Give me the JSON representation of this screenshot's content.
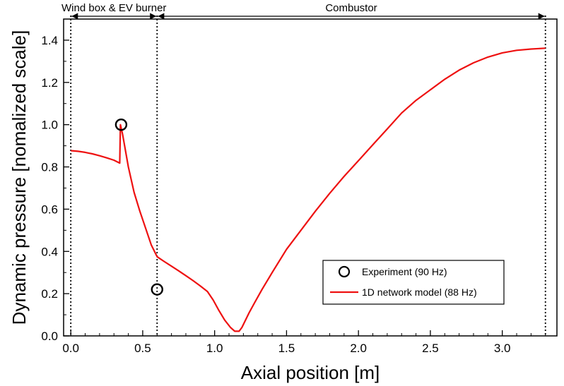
{
  "chart_data": {
    "type": "line",
    "title": "",
    "xlabel": "Axial position [m]",
    "ylabel": "Dynamic pressure [nomalized scale]",
    "xlim": [
      -0.05,
      3.38
    ],
    "ylim": [
      0.0,
      1.5
    ],
    "xticks": [
      0.0,
      0.5,
      1.0,
      1.5,
      2.0,
      2.5,
      3.0
    ],
    "xtick_labels": [
      "0.0",
      "0.5",
      "1.0",
      "1.5",
      "2.0",
      "2.5",
      "3.0"
    ],
    "yticks": [
      0.0,
      0.2,
      0.4,
      0.6,
      0.8,
      1.0,
      1.2,
      1.4
    ],
    "ytick_labels": [
      "0.0",
      "0.2",
      "0.4",
      "0.6",
      "0.8",
      "1.0",
      "1.2",
      "1.4"
    ],
    "grid": false,
    "legend_position": "lower-right",
    "regions": [
      {
        "label": "Wind box & EV burner",
        "x_start": 0.0,
        "x_end": 0.6
      },
      {
        "label": "Combustor",
        "x_start": 0.6,
        "x_end": 3.3
      }
    ],
    "boundary_lines": [
      0.0,
      0.6,
      3.3
    ],
    "series": [
      {
        "name": "Experiment (90 Hz)",
        "kind": "scatter",
        "marker": "open-circle",
        "color": "#000000",
        "x": [
          0.35,
          0.6
        ],
        "y": [
          1.0,
          0.22
        ]
      },
      {
        "name": "1D network model (88 Hz)",
        "kind": "line",
        "color": "#ee1111",
        "x": [
          0.0,
          0.05,
          0.1,
          0.15,
          0.2,
          0.25,
          0.3,
          0.34,
          0.345,
          0.36,
          0.4,
          0.44,
          0.48,
          0.52,
          0.56,
          0.6,
          0.65,
          0.7,
          0.75,
          0.8,
          0.85,
          0.9,
          0.95,
          0.99,
          1.03,
          1.07,
          1.11,
          1.14,
          1.17,
          1.19,
          1.21,
          1.24,
          1.28,
          1.33,
          1.4,
          1.5,
          1.6,
          1.7,
          1.8,
          1.9,
          2.0,
          2.1,
          2.2,
          2.3,
          2.4,
          2.5,
          2.6,
          2.7,
          2.8,
          2.9,
          3.0,
          3.1,
          3.2,
          3.3
        ],
        "y": [
          0.877,
          0.874,
          0.869,
          0.862,
          0.853,
          0.843,
          0.832,
          0.818,
          1.0,
          0.955,
          0.8,
          0.68,
          0.59,
          0.51,
          0.43,
          0.375,
          0.352,
          0.33,
          0.308,
          0.285,
          0.262,
          0.237,
          0.21,
          0.17,
          0.12,
          0.075,
          0.04,
          0.022,
          0.022,
          0.04,
          0.068,
          0.11,
          0.16,
          0.22,
          0.3,
          0.41,
          0.5,
          0.59,
          0.675,
          0.755,
          0.83,
          0.905,
          0.98,
          1.055,
          1.115,
          1.165,
          1.215,
          1.258,
          1.293,
          1.32,
          1.34,
          1.352,
          1.358,
          1.362
        ]
      }
    ]
  }
}
